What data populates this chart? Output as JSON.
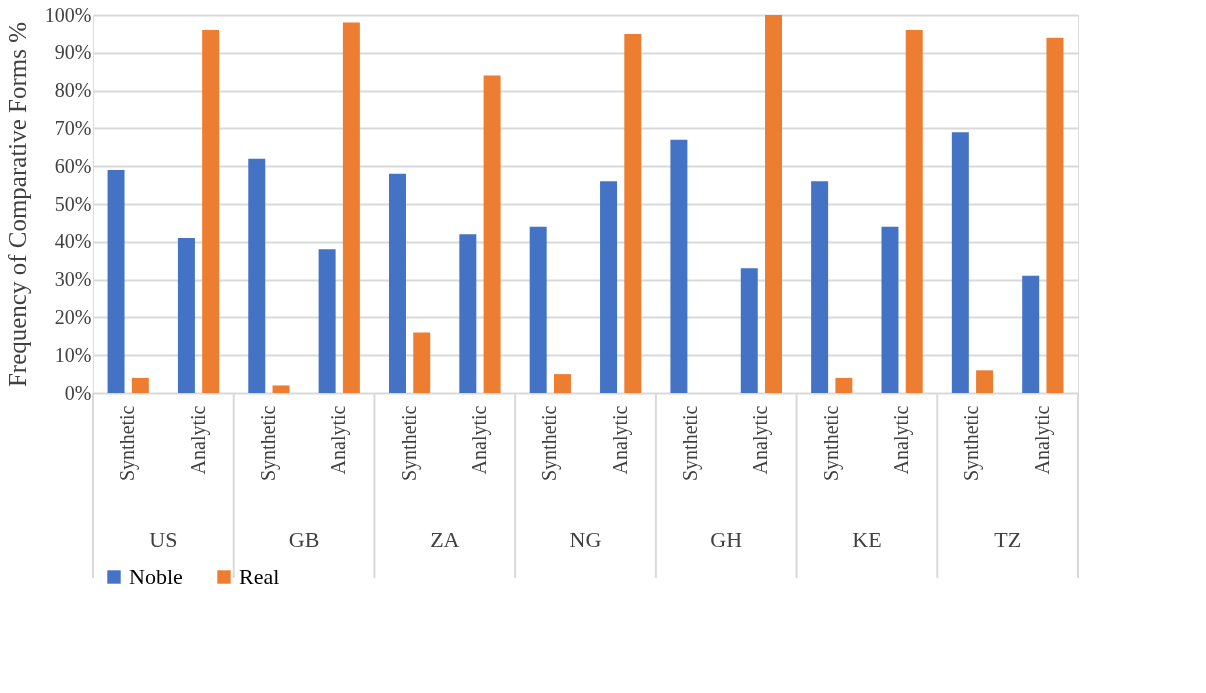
{
  "chart_data": {
    "type": "bar",
    "ylabel": "Frequency of Comparative Forms %",
    "categories": [
      "Synthetic",
      "Analytic",
      "Synthetic",
      "Analytic",
      "Synthetic",
      "Analytic",
      "Synthetic",
      "Analytic",
      "Synthetic",
      "Analytic",
      "Synthetic",
      "Analytic",
      "Synthetic",
      "Analytic"
    ],
    "series": [
      {
        "name": "Noble",
        "color": "#4472c4",
        "values": [
          59,
          41,
          62,
          38,
          58,
          42,
          44,
          56,
          67,
          33,
          56,
          44,
          69,
          31
        ]
      },
      {
        "name": "Real",
        "color": "#ed7d31",
        "values": [
          4,
          96,
          2,
          98,
          16,
          84,
          5,
          95,
          0,
          100,
          4,
          96,
          6,
          94
        ]
      }
    ],
    "annotations": [
      "US",
      "GB",
      "ZA",
      "NG",
      "GH",
      "KE",
      "TZ"
    ],
    "ylim": [
      0,
      100
    ],
    "yticks": [
      {
        "value": 0,
        "label": "0%"
      },
      {
        "value": 10,
        "label": "10%"
      },
      {
        "value": 20,
        "label": "20%"
      },
      {
        "value": 30,
        "label": "30%"
      },
      {
        "value": 40,
        "label": "40%"
      },
      {
        "value": 50,
        "label": "50%"
      },
      {
        "value": 60,
        "label": "60%"
      },
      {
        "value": 70,
        "label": "70%"
      },
      {
        "value": 80,
        "label": "80%"
      },
      {
        "value": 90,
        "label": "90%"
      },
      {
        "value": 100,
        "label": "100%"
      }
    ],
    "grid": "y",
    "legend": "bottom"
  }
}
